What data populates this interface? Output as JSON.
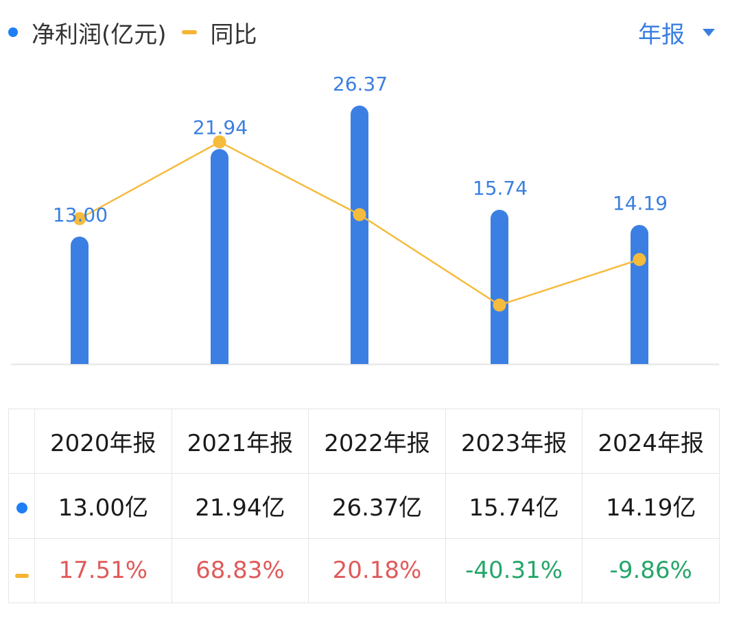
{
  "legend": {
    "net_profit_label": "净利润(亿元)",
    "yoy_label": "同比"
  },
  "period_selector": {
    "label": "年报"
  },
  "colors": {
    "bar": "#3b7fe3",
    "line": "#f5bb3c",
    "bar_label": "#3a7fe0",
    "positive": "#e05a5a",
    "negative": "#25a66a"
  },
  "table": {
    "headers": [
      "2020年报",
      "2021年报",
      "2022年报",
      "2023年报",
      "2024年报"
    ],
    "values": [
      "13.00亿",
      "21.94亿",
      "26.37亿",
      "15.74亿",
      "14.19亿"
    ],
    "yoy": [
      "17.51%",
      "68.83%",
      "20.18%",
      "-40.31%",
      "-9.86%"
    ]
  },
  "chart_data": {
    "type": "bar",
    "categories": [
      "2020年报",
      "2021年报",
      "2022年报",
      "2023年报",
      "2024年报"
    ],
    "series": [
      {
        "name": "净利润(亿元)",
        "type": "bar",
        "values": [
          13.0,
          21.94,
          26.37,
          15.74,
          14.19
        ],
        "labels": [
          "13.00",
          "21.94",
          "26.37",
          "15.74",
          "14.19"
        ]
      },
      {
        "name": "同比",
        "type": "line",
        "values": [
          17.51,
          68.83,
          20.18,
          -40.31,
          -9.86
        ]
      }
    ],
    "bar_axis_range": [
      0,
      26.37
    ],
    "line_axis_range": [
      -40.31,
      68.83
    ],
    "grid": false,
    "legend_position": "top-left"
  }
}
